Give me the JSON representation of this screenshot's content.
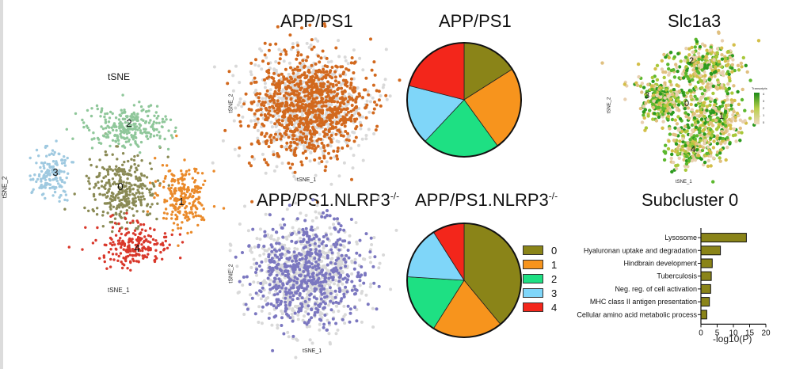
{
  "main_tsne": {
    "title": "tSNE",
    "xlabel": "tSNE_1",
    "ylabel": "tSNE_2",
    "cluster_labels": [
      "0",
      "1",
      "2",
      "3",
      "4"
    ]
  },
  "app_ps1_tsne": {
    "title": "APP/PS1",
    "xlabel": "tSNE_1",
    "ylabel": "tSNE_2",
    "point_color": "#d2691e"
  },
  "nlrp3_tsne": {
    "title": "APP/PS1.NLRP3",
    "title_sup": "-/-",
    "xlabel": "tSNE_1",
    "ylabel": "tSNE_2",
    "point_color": "#7b77c0"
  },
  "app_ps1_pie": {
    "title": "APP/PS1"
  },
  "nlrp3_pie": {
    "title": "APP/PS1.NLRP3",
    "title_sup": "-/-"
  },
  "slc1a3": {
    "title": "Slc1a3",
    "xlabel": "tSNE_1",
    "ylabel": "tSNE_2",
    "colorbar_title": "Transcripts",
    "colorbar_ticks": [
      "4",
      "3",
      "2",
      "1",
      "0"
    ],
    "cluster_labels": [
      "0",
      "1",
      "2",
      "3",
      "4"
    ]
  },
  "legend": {
    "items": [
      {
        "label": "0",
        "color": "#8a8418"
      },
      {
        "label": "1",
        "color": "#f7941d"
      },
      {
        "label": "2",
        "color": "#1ee083"
      },
      {
        "label": "3",
        "color": "#7fd6f9"
      },
      {
        "label": "4",
        "color": "#f3261b"
      }
    ]
  },
  "subcluster": {
    "title": "Subcluster 0",
    "xlabel": "-log10(P)"
  },
  "chart_data": [
    {
      "type": "scatter",
      "title": "tSNE",
      "xlabel": "tSNE_1",
      "ylabel": "tSNE_2",
      "series": [
        {
          "name": "0",
          "color": "#8a8a55"
        },
        {
          "name": "1",
          "color": "#ea8a2a"
        },
        {
          "name": "2",
          "color": "#8fc79a"
        },
        {
          "name": "3",
          "color": "#9fc9e0"
        },
        {
          "name": "4",
          "color": "#d9382b"
        }
      ]
    },
    {
      "type": "pie",
      "title": "APP/PS1",
      "labels": [
        "0",
        "1",
        "2",
        "3",
        "4"
      ],
      "values": [
        16,
        24,
        22,
        17,
        21
      ],
      "colors": [
        "#8a8418",
        "#f7941d",
        "#1ee083",
        "#7fd6f9",
        "#f3261b"
      ]
    },
    {
      "type": "pie",
      "title": "APP/PS1.NLRP3-/-",
      "labels": [
        "0",
        "1",
        "2",
        "3",
        "4"
      ],
      "values": [
        39,
        20,
        17,
        15,
        9
      ],
      "colors": [
        "#8a8418",
        "#f7941d",
        "#1ee083",
        "#7fd6f9",
        "#f3261b"
      ]
    },
    {
      "type": "bar",
      "orientation": "horizontal",
      "title": "Subcluster 0",
      "xlabel": "-log10(P)",
      "categories": [
        "Lysosome",
        "Hyaluronan uptake and degradation",
        "Hindbrain development",
        "Tuberculosis",
        "Neg. reg. of cell activation",
        "MHC class II antigen presentation",
        "Cellular amino acid metabolic process"
      ],
      "values": [
        14,
        6,
        3.5,
        3.2,
        3,
        2.6,
        1.8
      ],
      "xlim": [
        0,
        20
      ],
      "xticks": [
        0,
        5,
        10,
        15,
        20
      ],
      "color": "#8a8418"
    }
  ]
}
